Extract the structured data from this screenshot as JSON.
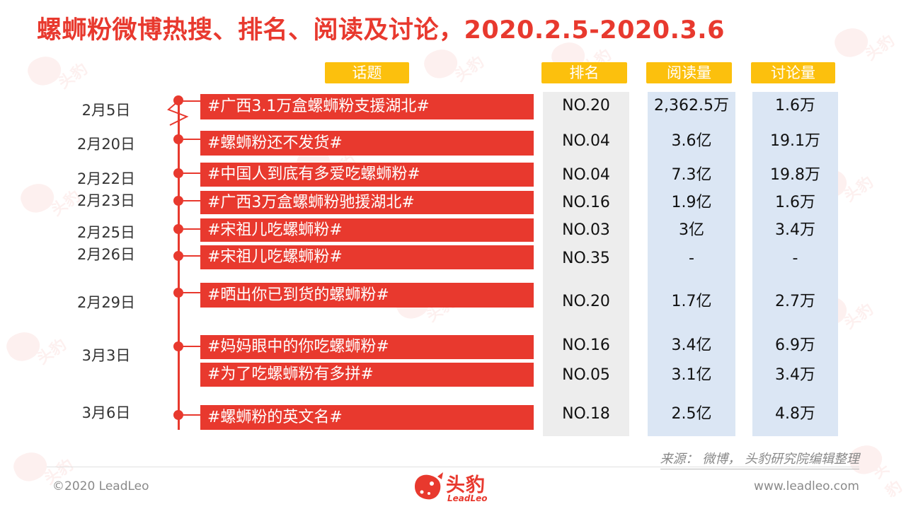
{
  "title": "螺蛳粉微博热搜、排名、阅读及讨论，2020.2.5-2020.3.6",
  "headers": {
    "topic": "话题",
    "rank": "排名",
    "reads": "阅读量",
    "discussions": "讨论量"
  },
  "dates": [
    "2月5日",
    "2月20日",
    "2月22日",
    "2月23日",
    "2月25日",
    "2月26日",
    "2月29日",
    "3月3日",
    "3月6日"
  ],
  "rows": [
    {
      "topic": "#广西3.1万盒螺蛳粉支援湖北#",
      "rank": "NO.20",
      "reads": "2,362.5万",
      "discussions": "1.6万"
    },
    {
      "topic": "#螺蛳粉还不发货#",
      "rank": "NO.04",
      "reads": "3.6亿",
      "discussions": "19.1万"
    },
    {
      "topic": "#中国人到底有多爱吃螺蛳粉#",
      "rank": "NO.04",
      "reads": "7.3亿",
      "discussions": "19.8万"
    },
    {
      "topic": "#广西3万盒螺蛳粉驰援湖北#",
      "rank": "NO.16",
      "reads": "1.9亿",
      "discussions": "1.6万"
    },
    {
      "topic": "#宋祖儿吃螺蛳粉#",
      "rank": "NO.03",
      "reads": "3亿",
      "discussions": "3.4万"
    },
    {
      "topic": "#宋祖儿吃螺蛳粉#",
      "rank": "NO.35",
      "reads": "-",
      "discussions": "-"
    },
    {
      "topic": "#晒出你已到货的螺蛳粉#",
      "rank": "NO.20",
      "reads": "1.7亿",
      "discussions": "2.7万"
    },
    {
      "topic": "#妈妈眼中的你吃螺蛳粉#",
      "rank": "NO.16",
      "reads": "3.4亿",
      "discussions": "6.9万"
    },
    {
      "topic": "#为了吃螺蛳粉有多拼#",
      "rank": "NO.05",
      "reads": "3.1亿",
      "discussions": "3.4万"
    },
    {
      "topic": "#螺蛳粉的英文名#",
      "rank": "NO.18",
      "reads": "2.5亿",
      "discussions": "4.8万"
    }
  ],
  "source": "来源：  微博，  头豹研究院编辑整理",
  "footer": {
    "copyright": "©2020 LeadLeo",
    "website": "www.leadleo.com",
    "logo_text": "头豹",
    "logo_en": "LeadLeo"
  },
  "colors": {
    "accent": "#e8392e",
    "header": "#fcc00d",
    "rank_bg": "#ededed",
    "value_bg": "#dbe6f4"
  }
}
